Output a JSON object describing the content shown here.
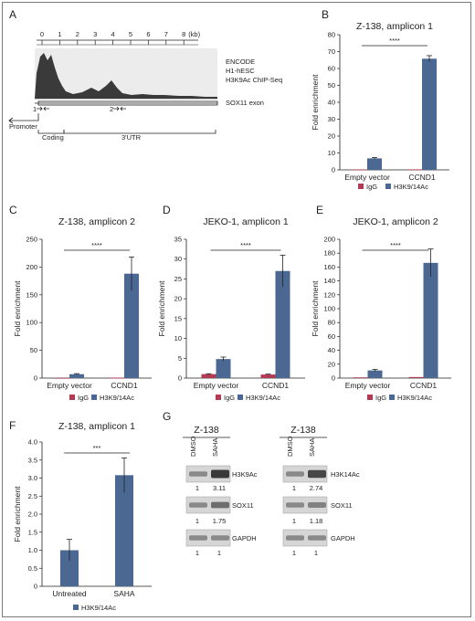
{
  "colors": {
    "igg": "#b23a52",
    "h3k": "#4a6891",
    "line": "#222222",
    "track": "#3a3a3a"
  },
  "panel_a": {
    "letter": "A",
    "ruler_ticks": [
      "0",
      "1",
      "2",
      "3",
      "4",
      "5",
      "6",
      "7",
      "8"
    ],
    "ruler_unit": "(kb)",
    "track_label_1": "ENCODE",
    "track_label_2": "H1-hESC",
    "track_label_3": "H3K9Ac ChIP-Seq",
    "exon_label": "SOX11 exon",
    "amp1_label": "1",
    "amp2_label": "2",
    "promoter_label": "Promoter",
    "coding_label": "Coding",
    "utr_label": "3'UTR"
  },
  "chart_data": [
    {
      "id": "B",
      "letter": "B",
      "type": "bar",
      "title": "Z-138, amplicon 1",
      "ylabel": "Fold enrichment",
      "categories": [
        "Empty vector",
        "CCND1"
      ],
      "series": [
        {
          "name": "IgG",
          "values": [
            0.2,
            0.3
          ],
          "errors": [
            0,
            0
          ]
        },
        {
          "name": "H3K9/14Ac",
          "values": [
            6.8,
            65.8
          ],
          "errors": [
            0.5,
            1.8
          ]
        }
      ],
      "ylim": [
        0,
        80
      ],
      "yticks": [
        "0",
        "10",
        "20",
        "30",
        "40",
        "50",
        "60",
        "70",
        "80"
      ],
      "significance": "****"
    },
    {
      "id": "C",
      "letter": "C",
      "type": "bar",
      "title": "Z-138, amplicon 2",
      "ylabel": "Fold enrichment",
      "categories": [
        "Empty vector",
        "CCND1"
      ],
      "series": [
        {
          "name": "IgG",
          "values": [
            0.3,
            0.5
          ],
          "errors": [
            0,
            0
          ]
        },
        {
          "name": "H3K9/14Ac",
          "values": [
            7,
            188
          ],
          "errors": [
            1,
            30
          ]
        }
      ],
      "ylim": [
        0,
        250
      ],
      "yticks": [
        "0",
        "50",
        "100",
        "150",
        "200",
        "250"
      ],
      "significance": "****"
    },
    {
      "id": "D",
      "letter": "D",
      "type": "bar",
      "title": "JEKO-1, amplicon 1",
      "ylabel": "Fold enrichment",
      "categories": [
        "Empty vector",
        "CCND1"
      ],
      "series": [
        {
          "name": "IgG",
          "values": [
            1,
            0.9
          ],
          "errors": [
            0.1,
            0.1
          ]
        },
        {
          "name": "H3K9/14Ac",
          "values": [
            4.8,
            27
          ],
          "errors": [
            0.5,
            4
          ]
        }
      ],
      "ylim": [
        0,
        35
      ],
      "yticks": [
        "0",
        "5",
        "10",
        "15",
        "20",
        "25",
        "30",
        "35"
      ],
      "significance": "****"
    },
    {
      "id": "E",
      "letter": "E",
      "type": "bar",
      "title": "JEKO-1, amplicon 2",
      "ylabel": "Fold enrichment",
      "categories": [
        "Empty vector",
        "CCND1"
      ],
      "series": [
        {
          "name": "IgG",
          "values": [
            1,
            1.5
          ],
          "errors": [
            0,
            0
          ]
        },
        {
          "name": "H3K9/14Ac",
          "values": [
            11,
            166
          ],
          "errors": [
            1.5,
            20
          ]
        }
      ],
      "ylim": [
        0,
        200
      ],
      "yticks": [
        "0",
        "20",
        "40",
        "60",
        "80",
        "100",
        "120",
        "140",
        "160",
        "180",
        "200"
      ],
      "significance": "****"
    },
    {
      "id": "F",
      "letter": "F",
      "type": "bar",
      "title": "Z-138, amplicon 1",
      "ylabel": "Fold enrichment",
      "categories": [
        "Untreated",
        "SAHA"
      ],
      "series": [
        {
          "name": "H3K9/14Ac",
          "values": [
            1.0,
            3.08
          ],
          "errors": [
            0.3,
            0.48
          ]
        }
      ],
      "ylim": [
        0,
        4.0
      ],
      "yticks": [
        "0",
        "0.5",
        "1.0",
        "1.5",
        "2.0",
        "2.5",
        "3.0",
        "3.5",
        "4.0"
      ],
      "significance": "***"
    }
  ],
  "panel_g": {
    "letter": "G",
    "left": {
      "cell_line": "Z-138",
      "lanes": [
        "DMSO",
        "SAHA"
      ],
      "rows": [
        {
          "label": "H3K9Ac",
          "values": [
            "1",
            "3.11"
          ]
        },
        {
          "label": "SOX11",
          "values": [
            "1",
            "1.75"
          ]
        },
        {
          "label": "GAPDH",
          "values": [
            "1",
            "1"
          ]
        }
      ]
    },
    "right": {
      "cell_line": "Z-138",
      "lanes": [
        "DMSO",
        "SAHA"
      ],
      "rows": [
        {
          "label": "H3K14Ac",
          "values": [
            "1",
            "2.74"
          ]
        },
        {
          "label": "SOX11",
          "values": [
            "1",
            "1.18"
          ]
        },
        {
          "label": "GAPDH",
          "values": [
            "1",
            "1"
          ]
        }
      ]
    }
  }
}
